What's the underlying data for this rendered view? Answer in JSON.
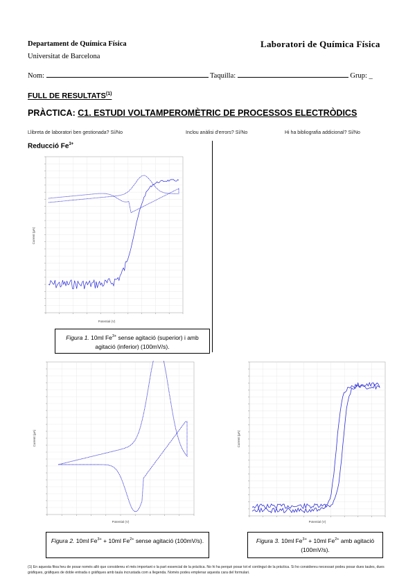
{
  "header": {
    "department": "Departament de Química Física",
    "university": "Universitat de Barcelona",
    "lab": "Laboratori de Química Física"
  },
  "fields": {
    "name_label": "Nom:",
    "locker_label": "Taquilla:",
    "group_label": "Grup: _"
  },
  "titles": {
    "results": "FULL DE RESULTATS",
    "results_note": "(1)",
    "practice_prefix": "PRÀCTICA:",
    "practice": "C1. ESTUDI VOLTAMPEROMÈTRIC DE PROCESSOS ELECTRÒDICS"
  },
  "questions": {
    "q1": "Llibreta de laboratori ben gestionada? Sí/No",
    "q2": "Inclou anàlisi d'errors? Sí/No",
    "q3": "Hi ha bibliografia addicional? Sí/No"
  },
  "section": {
    "label": "Reducció Fe",
    "sup": "3+"
  },
  "captions": {
    "fig1": {
      "label": "Figura 1.",
      "text_a": " 10ml Fe",
      "sup_a": "3+",
      "text_b": " sense agitació (superior) i amb agitació (inferior) (100mV/s)."
    },
    "fig2": {
      "label": "Figura 2.",
      "text_a": " 10ml Fe",
      "sup_a": "3+",
      "text_b": " + 10ml Fe",
      "sup_b": "2+",
      "text_c": " sense agitació (100mV/s)."
    },
    "fig3": {
      "label": "Figura 3.",
      "text_a": " 10ml Fe",
      "sup_a": "3+",
      "text_b": " + 10ml Fe",
      "sup_b": "2+",
      "text_c": " amb agitació (100mV/s)."
    }
  },
  "footnote": "(1) En aquesta fitxa heu de posar només allò que considereu el més important o la part essencial de la pràctica. No hi ha perquè posar tot el contingut de la pràctica. Si ho considereu necessari podeu posar dues taules, dues gràfiques, gràfiques de doble entrada o gràfiques amb taula incrustada com a llegenda. Només podeu emplenar aquesta cara del formulari.",
  "plots": {
    "fig1": {
      "ylabel": "Current (µA)",
      "xlabel": "Potential (V)",
      "color": "#2b2bd6"
    },
    "fig2": {
      "ylabel": "Current (µA)",
      "xlabel": "Potential (V)",
      "color": "#2b2bd6"
    },
    "fig3": {
      "ylabel": "Current (µA)",
      "xlabel": "Potential (V)",
      "color": "#2b2bd6"
    }
  }
}
